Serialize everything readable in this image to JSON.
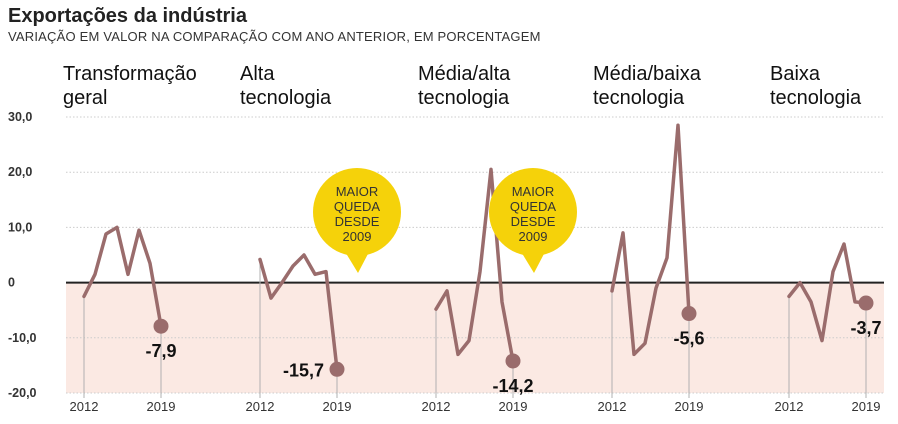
{
  "title": "Exportações da indústria",
  "subtitle": "VARIAÇÃO EM VALOR NA COMPARAÇÃO COM ANO ANTERIOR, EM PORCENTAGEM",
  "colors": {
    "line": "#9a6c6c",
    "negative_band": "#fbe9e3",
    "callout": "#f5d20a",
    "zero_line": "#222222",
    "grid": "#cccccc"
  },
  "chart_data": {
    "type": "line",
    "ylim": [
      -20,
      30
    ],
    "yticks": [
      30,
      20,
      10,
      0,
      -10,
      -20
    ],
    "ytick_labels": [
      "30,0",
      "20,0",
      "10,0",
      "0",
      "-10,0",
      "-20,0"
    ],
    "x_start_label": "2012",
    "x_end_label": "2019",
    "series": [
      {
        "name": "Transformação geral",
        "title_lines": [
          "Transformação",
          "geral"
        ],
        "values": [
          -2.5,
          1.5,
          8.8,
          10,
          1.5,
          9.5,
          3.5,
          -7.9
        ],
        "last_label": "-7,9",
        "label_side": "below",
        "callout": null
      },
      {
        "name": "Alta tecnologia",
        "title_lines": [
          "Alta",
          "tecnologia"
        ],
        "values": [
          4.2,
          -2.8,
          0,
          3,
          5,
          1.5,
          2,
          -15.7
        ],
        "last_label": "-15,7",
        "label_side": "left",
        "callout": [
          "MAIOR",
          "QUEDA",
          "DESDE",
          "2009"
        ]
      },
      {
        "name": "Média/alta tecnologia",
        "title_lines": [
          "Média/alta",
          "tecnologia"
        ],
        "values": [
          -4.8,
          -1.5,
          -13,
          -10.5,
          2,
          20.5,
          -3.5,
          -14.2
        ],
        "last_label": "-14,2",
        "label_side": "below",
        "callout": [
          "MAIOR",
          "QUEDA",
          "DESDE",
          "2009"
        ]
      },
      {
        "name": "Média/baixa tecnologia",
        "title_lines": [
          "Média/baixa",
          "tecnologia"
        ],
        "values": [
          -1.5,
          9,
          -13,
          -11,
          -1,
          4.5,
          28.5,
          -5.6
        ],
        "last_label": "-5,6",
        "label_side": "below",
        "callout": null
      },
      {
        "name": "Baixa tecnologia",
        "title_lines": [
          "Baixa",
          "tecnologia"
        ],
        "values": [
          -2.5,
          0,
          -3.5,
          -10.5,
          2,
          7,
          -3.5,
          -3.7
        ],
        "last_label": "-3,7",
        "label_side": "below",
        "callout": null
      }
    ]
  }
}
